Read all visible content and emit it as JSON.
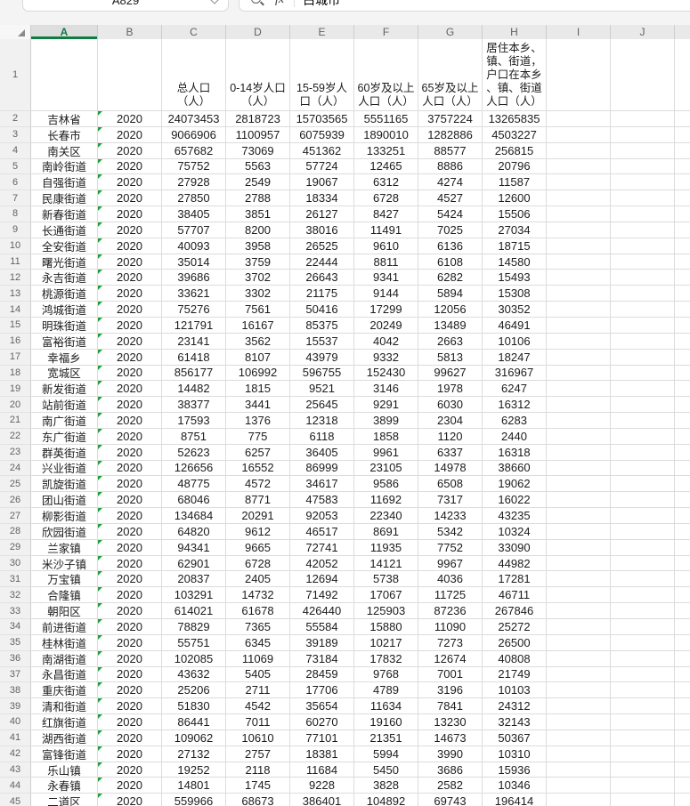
{
  "toolbar": {
    "name_box_value": "A829",
    "fx_label": "fx",
    "formula_value": "白城市"
  },
  "colors": {
    "accent_green": "#107c41",
    "error_triangle_green": "#21a038",
    "header_bg": "#e9e9e9",
    "selected_header_bg": "#dedede",
    "gridline": "#dcdcdc"
  },
  "grid": {
    "column_letters": [
      "A",
      "B",
      "C",
      "D",
      "E",
      "F",
      "G",
      "H",
      "I",
      "J"
    ],
    "selected_column": "A",
    "header_row": {
      "number": "1",
      "c": "总人口\n（人）",
      "d": "0-14岁人口\n（人）",
      "e": "15-59岁人\n口（人）",
      "f": "60岁及以上\n人口（人）",
      "g": "65岁及以上\n人口（人）",
      "h": "居住本乡、\n镇、街道，\n户口在本乡\n、镇、街道\n人口（人）"
    },
    "rows": [
      {
        "n": "2",
        "region": "吉林省",
        "year": "2020",
        "values": [
          "24073453",
          "2818723",
          "15703565",
          "5551165",
          "3757224",
          "13265835"
        ]
      },
      {
        "n": "3",
        "region": "长春市",
        "year": "2020",
        "values": [
          "9066906",
          "1100957",
          "6075939",
          "1890010",
          "1282886",
          "4503227"
        ]
      },
      {
        "n": "4",
        "region": "南关区",
        "year": "2020",
        "values": [
          "657682",
          "73069",
          "451362",
          "133251",
          "88577",
          "256815"
        ]
      },
      {
        "n": "5",
        "region": "南岭街道",
        "year": "2020",
        "values": [
          "75752",
          "5563",
          "57724",
          "12465",
          "8886",
          "20796"
        ]
      },
      {
        "n": "6",
        "region": "自强街道",
        "year": "2020",
        "values": [
          "27928",
          "2549",
          "19067",
          "6312",
          "4274",
          "11587"
        ]
      },
      {
        "n": "7",
        "region": "民康街道",
        "year": "2020",
        "values": [
          "27850",
          "2788",
          "18334",
          "6728",
          "4527",
          "12600"
        ]
      },
      {
        "n": "8",
        "region": "新春街道",
        "year": "2020",
        "values": [
          "38405",
          "3851",
          "26127",
          "8427",
          "5424",
          "15506"
        ]
      },
      {
        "n": "9",
        "region": "长通街道",
        "year": "2020",
        "values": [
          "57707",
          "8200",
          "38016",
          "11491",
          "7025",
          "27034"
        ]
      },
      {
        "n": "10",
        "region": "全安街道",
        "year": "2020",
        "values": [
          "40093",
          "3958",
          "26525",
          "9610",
          "6136",
          "18715"
        ]
      },
      {
        "n": "11",
        "region": "曙光街道",
        "year": "2020",
        "values": [
          "35014",
          "3759",
          "22444",
          "8811",
          "6108",
          "14580"
        ]
      },
      {
        "n": "12",
        "region": "永吉街道",
        "year": "2020",
        "values": [
          "39686",
          "3702",
          "26643",
          "9341",
          "6282",
          "15493"
        ]
      },
      {
        "n": "13",
        "region": "桃源街道",
        "year": "2020",
        "values": [
          "33621",
          "3302",
          "21175",
          "9144",
          "5894",
          "15308"
        ]
      },
      {
        "n": "14",
        "region": "鸿城街道",
        "year": "2020",
        "values": [
          "75276",
          "7561",
          "50416",
          "17299",
          "12056",
          "30352"
        ]
      },
      {
        "n": "15",
        "region": "明珠街道",
        "year": "2020",
        "values": [
          "121791",
          "16167",
          "85375",
          "20249",
          "13489",
          "46491"
        ]
      },
      {
        "n": "16",
        "region": "富裕街道",
        "year": "2020",
        "values": [
          "23141",
          "3562",
          "15537",
          "4042",
          "2663",
          "10106"
        ]
      },
      {
        "n": "17",
        "region": "幸福乡",
        "year": "2020",
        "values": [
          "61418",
          "8107",
          "43979",
          "9332",
          "5813",
          "18247"
        ]
      },
      {
        "n": "18",
        "region": "宽城区",
        "year": "2020",
        "values": [
          "856177",
          "106992",
          "596755",
          "152430",
          "99627",
          "316967"
        ]
      },
      {
        "n": "19",
        "region": "新发街道",
        "year": "2020",
        "values": [
          "14482",
          "1815",
          "9521",
          "3146",
          "1978",
          "6247"
        ]
      },
      {
        "n": "20",
        "region": "站前街道",
        "year": "2020",
        "values": [
          "38377",
          "3441",
          "25645",
          "9291",
          "6030",
          "16312"
        ]
      },
      {
        "n": "21",
        "region": "南广街道",
        "year": "2020",
        "values": [
          "17593",
          "1376",
          "12318",
          "3899",
          "2304",
          "6283"
        ]
      },
      {
        "n": "22",
        "region": "东广街道",
        "year": "2020",
        "values": [
          "8751",
          "775",
          "6118",
          "1858",
          "1120",
          "2440"
        ]
      },
      {
        "n": "23",
        "region": "群英街道",
        "year": "2020",
        "values": [
          "52623",
          "6257",
          "36405",
          "9961",
          "6337",
          "16318"
        ]
      },
      {
        "n": "24",
        "region": "兴业街道",
        "year": "2020",
        "values": [
          "126656",
          "16552",
          "86999",
          "23105",
          "14978",
          "38660"
        ]
      },
      {
        "n": "25",
        "region": "凯旋街道",
        "year": "2020",
        "values": [
          "48775",
          "4572",
          "34617",
          "9586",
          "6508",
          "19062"
        ]
      },
      {
        "n": "26",
        "region": "团山街道",
        "year": "2020",
        "values": [
          "68046",
          "8771",
          "47583",
          "11692",
          "7317",
          "16022"
        ]
      },
      {
        "n": "27",
        "region": "柳影街道",
        "year": "2020",
        "values": [
          "134684",
          "20291",
          "92053",
          "22340",
          "14233",
          "43235"
        ]
      },
      {
        "n": "28",
        "region": "欣园街道",
        "year": "2020",
        "values": [
          "64820",
          "9612",
          "46517",
          "8691",
          "5342",
          "10324"
        ]
      },
      {
        "n": "29",
        "region": "兰家镇",
        "year": "2020",
        "values": [
          "94341",
          "9665",
          "72741",
          "11935",
          "7752",
          "33090"
        ]
      },
      {
        "n": "30",
        "region": "米沙子镇",
        "year": "2020",
        "values": [
          "62901",
          "6728",
          "42052",
          "14121",
          "9967",
          "44982"
        ]
      },
      {
        "n": "31",
        "region": "万宝镇",
        "year": "2020",
        "values": [
          "20837",
          "2405",
          "12694",
          "5738",
          "4036",
          "17281"
        ]
      },
      {
        "n": "32",
        "region": "合隆镇",
        "year": "2020",
        "values": [
          "103291",
          "14732",
          "71492",
          "17067",
          "11725",
          "46711"
        ]
      },
      {
        "n": "33",
        "region": "朝阳区",
        "year": "2020",
        "values": [
          "614021",
          "61678",
          "426440",
          "125903",
          "87236",
          "267846"
        ]
      },
      {
        "n": "34",
        "region": "前进街道",
        "year": "2020",
        "values": [
          "78829",
          "7365",
          "55584",
          "15880",
          "11090",
          "25272"
        ]
      },
      {
        "n": "35",
        "region": "桂林街道",
        "year": "2020",
        "values": [
          "55751",
          "6345",
          "39189",
          "10217",
          "7273",
          "26500"
        ]
      },
      {
        "n": "36",
        "region": "南湖街道",
        "year": "2020",
        "values": [
          "102085",
          "11069",
          "73184",
          "17832",
          "12674",
          "40808"
        ]
      },
      {
        "n": "37",
        "region": "永昌街道",
        "year": "2020",
        "values": [
          "43632",
          "5405",
          "28459",
          "9768",
          "7001",
          "21749"
        ]
      },
      {
        "n": "38",
        "region": "重庆街道",
        "year": "2020",
        "values": [
          "25206",
          "2711",
          "17706",
          "4789",
          "3196",
          "10103"
        ]
      },
      {
        "n": "39",
        "region": "清和街道",
        "year": "2020",
        "values": [
          "51830",
          "4542",
          "35654",
          "11634",
          "7841",
          "24312"
        ]
      },
      {
        "n": "40",
        "region": "红旗街道",
        "year": "2020",
        "values": [
          "86441",
          "7011",
          "60270",
          "19160",
          "13230",
          "32143"
        ]
      },
      {
        "n": "41",
        "region": "湖西街道",
        "year": "2020",
        "values": [
          "109062",
          "10610",
          "77101",
          "21351",
          "14673",
          "50367"
        ]
      },
      {
        "n": "42",
        "region": "富锋街道",
        "year": "2020",
        "values": [
          "27132",
          "2757",
          "18381",
          "5994",
          "3990",
          "10310"
        ]
      },
      {
        "n": "43",
        "region": "乐山镇",
        "year": "2020",
        "values": [
          "19252",
          "2118",
          "11684",
          "5450",
          "3686",
          "15936"
        ]
      },
      {
        "n": "44",
        "region": "永春镇",
        "year": "2020",
        "values": [
          "14801",
          "1745",
          "9228",
          "3828",
          "2582",
          "10346"
        ]
      },
      {
        "n": "45",
        "region": "二道区",
        "year": "2020",
        "values": [
          "559966",
          "68673",
          "386401",
          "104892",
          "69743",
          "196414"
        ]
      }
    ]
  }
}
